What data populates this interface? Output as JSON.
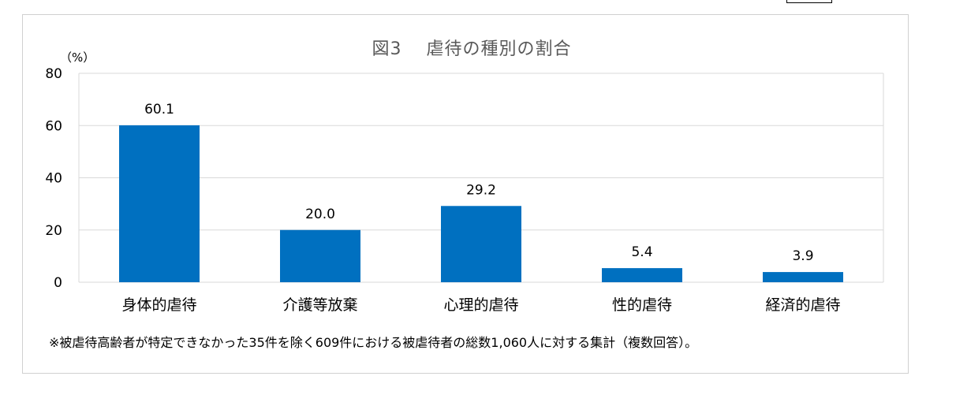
{
  "chart_data": {
    "type": "bar",
    "title": "図3　 虐待の種別の割合",
    "y_unit": "（%）",
    "categories": [
      "身体的虐待",
      "介護等放棄",
      "心理的虐待",
      "性的虐待",
      "経済的虐待"
    ],
    "values": [
      60.1,
      20.0,
      29.2,
      5.4,
      3.9
    ],
    "value_labels": [
      "60.1",
      "20.0",
      "29.2",
      "5.4",
      "3.9"
    ],
    "ylim": [
      0,
      80
    ],
    "yticks": [
      0,
      20,
      40,
      60,
      80
    ],
    "grid": true,
    "legend": "none",
    "bar_color": "#0070c0"
  },
  "footnote": "※被虐待高齢者が特定できなかった35件を除く609件における被虐待者の総数1,060人に対する集計（複数回答）。"
}
